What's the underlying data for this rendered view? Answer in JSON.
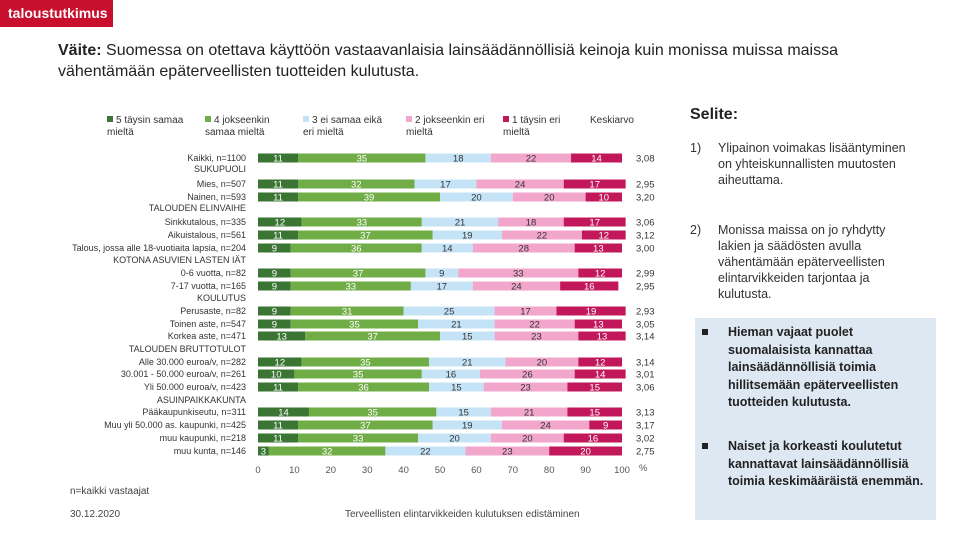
{
  "logo": "taloustutkimus",
  "title": {
    "prefix": "Väite:",
    "text": "Suomessa on otettava käyttöön vastaavanlaisia lainsäädännöllisiä keinoja kuin monissa muissa maissa vähentämään epäterveellisten tuotteiden kulutusta."
  },
  "legend": {
    "s1": {
      "label": "5 täysin samaa mieltä",
      "color": "#3a7534"
    },
    "s2": {
      "label": "4 jokseenkin samaa mieltä",
      "color": "#70ad47"
    },
    "s3": {
      "label": "3 ei samaa eikä eri mieltä",
      "color": "#c5e3f6"
    },
    "s4": {
      "label": "2 jokseenkin eri mieltä",
      "color": "#f2a6cb"
    },
    "s5": {
      "label": "1 täysin eri mieltä",
      "color": "#c2185b"
    },
    "avg": "Keskiarvo"
  },
  "chart_data": {
    "type": "bar",
    "stacked": true,
    "orientation": "horizontal",
    "x_ticks": [
      "0",
      "10",
      "20",
      "30",
      "40",
      "50",
      "60",
      "70",
      "80",
      "90",
      "100"
    ],
    "x_unit": "%",
    "xlim": [
      0,
      100
    ],
    "series": [
      {
        "name": "5 täysin samaa mieltä",
        "color": "#3a7534"
      },
      {
        "name": "4 jokseenkin samaa mieltä",
        "color": "#70ad47"
      },
      {
        "name": "3 ei samaa eikä eri mieltä",
        "color": "#c5e3f6"
      },
      {
        "name": "2 jokseenkin eri mieltä",
        "color": "#f2a6cb"
      },
      {
        "name": "1 täysin eri mieltä",
        "color": "#c2185b"
      }
    ],
    "rows": [
      {
        "label": "Kaikki, n=1100",
        "values": [
          11,
          35,
          18,
          22,
          14
        ],
        "avg": "3,08"
      },
      {
        "label": "SUKUPUOLI",
        "header": true
      },
      {
        "label": "Mies, n=507",
        "values": [
          11,
          32,
          17,
          24,
          17
        ],
        "avg": "2,95"
      },
      {
        "label": "Nainen, n=593",
        "values": [
          11,
          39,
          20,
          20,
          10
        ],
        "avg": "3,20"
      },
      {
        "label": "TALOUDEN ELINVAIHE",
        "header": true
      },
      {
        "label": "Sinkkutalous, n=335",
        "values": [
          12,
          33,
          21,
          18,
          17
        ],
        "avg": "3,06"
      },
      {
        "label": "Aikuistalous, n=561",
        "values": [
          11,
          37,
          19,
          22,
          12
        ],
        "avg": "3,12"
      },
      {
        "label": "Talous, jossa alle 18-vuotiaita lapsia, n=204",
        "values": [
          9,
          36,
          14,
          28,
          13
        ],
        "avg": "3,00"
      },
      {
        "label": "KOTONA ASUVIEN LASTEN IÄT",
        "header": true
      },
      {
        "label": "0-6 vuotta, n=82",
        "values": [
          9,
          37,
          9,
          33,
          12
        ],
        "avg": "2,99"
      },
      {
        "label": "7-17 vuotta, n=165",
        "values": [
          9,
          33,
          17,
          24,
          16
        ],
        "avg": "2,95"
      },
      {
        "label": "KOULUTUS",
        "header": true
      },
      {
        "label": "Perusaste, n=82",
        "values": [
          9,
          31,
          25,
          17,
          19
        ],
        "avg": "2,93"
      },
      {
        "label": "Toinen aste, n=547",
        "values": [
          9,
          35,
          21,
          22,
          13
        ],
        "avg": "3,05"
      },
      {
        "label": "Korkea aste, n=471",
        "values": [
          13,
          37,
          15,
          23,
          13
        ],
        "avg": "3,14"
      },
      {
        "label": "TALOUDEN BRUTTOTULOT",
        "header": true
      },
      {
        "label": "Alle 30.000 euroa/v, n=282",
        "values": [
          12,
          35,
          21,
          20,
          12
        ],
        "avg": "3,14"
      },
      {
        "label": "30.001 - 50.000 euroa/v, n=261",
        "values": [
          10,
          35,
          16,
          26,
          14
        ],
        "avg": "3,01"
      },
      {
        "label": "Yli 50.000 euroa/v, n=423",
        "values": [
          11,
          36,
          15,
          23,
          15
        ],
        "avg": "3,06"
      },
      {
        "label": "ASUINPAIKKAKUNTA",
        "header": true
      },
      {
        "label": "Pääkaupunkiseutu, n=311",
        "values": [
          14,
          35,
          15,
          21,
          15
        ],
        "avg": "3,13"
      },
      {
        "label": "Muu yli 50.000 as. kaupunki, n=425",
        "values": [
          11,
          37,
          19,
          24,
          9
        ],
        "avg": "3,17"
      },
      {
        "label": "muu kaupunki, n=218",
        "values": [
          11,
          33,
          20,
          20,
          16
        ],
        "avg": "3,02"
      },
      {
        "label": "muu kunta, n=146",
        "values": [
          3,
          32,
          22,
          23,
          20
        ],
        "avg": "2,75"
      }
    ]
  },
  "footer": {
    "base": "n=kaikki vastaajat",
    "date": "30.12.2020",
    "project": "Terveellisten elintarvikkeiden kulutuksen edistäminen"
  },
  "selite": {
    "title": "Selite:",
    "notes": [
      {
        "num": "1)",
        "text": "Ylipainon voimakas lisääntyminen on yhteiskunnallisten muutosten aiheuttama."
      },
      {
        "num": "2)",
        "text": "Monissa maissa on jo ryhdytty lakien ja säädösten avulla vähentämään epäterveellisten elintarvikkeiden tarjontaa ja kulutusta."
      }
    ]
  },
  "highlights": [
    "Hieman vajaat puolet suomalaisista kannattaa lainsäädännöllisiä toimia hillitsemään epäterveellisten tuotteiden kulutusta.",
    "Naiset ja korkeasti koulutetut kannattavat lainsäädännöllisiä toimia keskimääräistä enemmän."
  ]
}
